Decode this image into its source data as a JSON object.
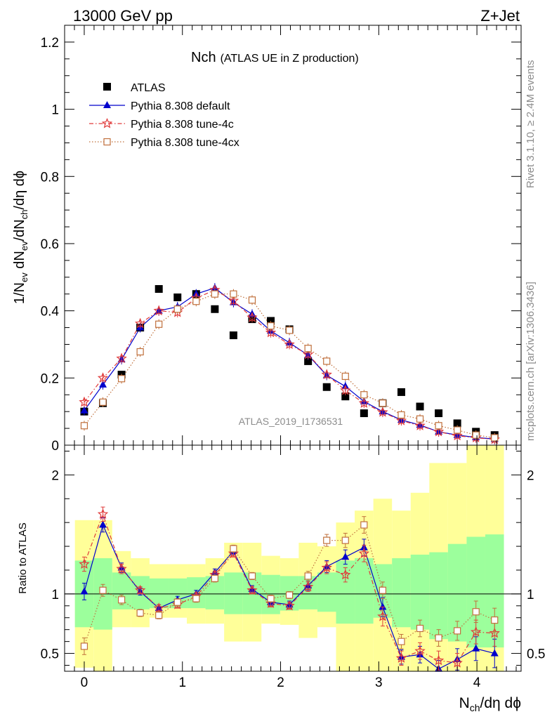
{
  "header": {
    "left": "13000 GeV pp",
    "right": "Z+Jet"
  },
  "side": {
    "rivet": "Rivet 3.1.10, ≥ 2.4M events",
    "mcplots": "mcplots.cern.ch [arXiv:1306.3436]"
  },
  "chart_data": {
    "type": "scatter",
    "title": "Nch",
    "subtitle": "(ATLAS UE in Z production)",
    "watermark": "ATLAS_2019_I1736531",
    "xlabel_main": "N",
    "xlabel_sub": "ch",
    "xlabel_tail": "/dη dϕ",
    "ylabel": {
      "p1": "1/N",
      "s1": "ev",
      "p2": " dN",
      "s2": "ev",
      "p3": "/dN",
      "s3": "ch",
      "p4": "/dη dϕ"
    },
    "ratio_ylabel": "Ratio to ATLAS",
    "xlim": [
      -0.2,
      4.45
    ],
    "ylim": [
      0,
      1.25
    ],
    "ratio_ylim": [
      0.35,
      2.25
    ],
    "x_ticks": [
      "0",
      "1",
      "2",
      "3",
      "4"
    ],
    "y_ticks": [
      "0",
      "0.2",
      "0.4",
      "0.6",
      "0.8",
      "1",
      "1.2"
    ],
    "ratio_ticks": [
      "0.5",
      "1",
      "2"
    ],
    "x": [
      0,
      0.19,
      0.38,
      0.57,
      0.76,
      0.95,
      1.14,
      1.33,
      1.52,
      1.71,
      1.9,
      2.09,
      2.28,
      2.47,
      2.66,
      2.85,
      3.04,
      3.23,
      3.42,
      3.61,
      3.8,
      3.99,
      4.18
    ],
    "series": [
      {
        "name": "ATLAS",
        "values": [
          0.1,
          0.125,
          0.21,
          0.35,
          0.465,
          0.44,
          0.45,
          0.405,
          0.327,
          0.375,
          0.37,
          0.345,
          0.25,
          0.173,
          0.145,
          0.095,
          0.125,
          0.158,
          0.115,
          0.095,
          0.065,
          0.04,
          0.03
        ]
      },
      {
        "name": "Pythia 8.308 default",
        "values": [
          0.103,
          0.18,
          0.255,
          0.35,
          0.4,
          0.412,
          0.45,
          0.468,
          0.425,
          0.39,
          0.34,
          0.305,
          0.268,
          0.208,
          0.175,
          0.13,
          0.1,
          0.075,
          0.06,
          0.04,
          0.03,
          0.023,
          0.018
        ]
      },
      {
        "name": "Pythia 8.308 tune-4c",
        "values": [
          0.128,
          0.2,
          0.258,
          0.362,
          0.4,
          0.395,
          0.438,
          0.462,
          0.43,
          0.38,
          0.335,
          0.3,
          0.27,
          0.21,
          0.163,
          0.125,
          0.098,
          0.073,
          0.058,
          0.04,
          0.028,
          0.022,
          0.017
        ]
      },
      {
        "name": "Pythia 8.308 tune-4cx",
        "values": [
          0.058,
          0.128,
          0.198,
          0.278,
          0.36,
          0.405,
          0.428,
          0.45,
          0.45,
          0.432,
          0.355,
          0.342,
          0.288,
          0.25,
          0.205,
          0.15,
          0.125,
          0.09,
          0.078,
          0.058,
          0.045,
          0.03,
          0.022
        ]
      }
    ],
    "ratio_series": [
      {
        "name": "Pythia 8.308 default",
        "values": [
          1.02,
          1.58,
          1.22,
          1.02,
          0.88,
          0.95,
          1.0,
          1.18,
          1.36,
          1.04,
          0.93,
          0.91,
          1.07,
          1.23,
          1.31,
          1.39,
          0.89,
          0.47,
          0.49,
          0.37,
          0.45,
          0.54,
          0.5
        ],
        "errors": [
          0.07,
          0.06,
          0.04,
          0.03,
          0.03,
          0.03,
          0.03,
          0.03,
          0.03,
          0.03,
          0.03,
          0.03,
          0.04,
          0.05,
          0.06,
          0.07,
          0.08,
          0.06,
          0.07,
          0.07,
          0.09,
          0.1,
          0.12
        ]
      },
      {
        "name": "Pythia 8.308 tune-4c",
        "values": [
          1.25,
          1.67,
          1.21,
          1.03,
          0.88,
          0.91,
          0.98,
          1.16,
          1.34,
          1.03,
          0.92,
          0.9,
          1.06,
          1.22,
          1.16,
          1.34,
          0.81,
          0.46,
          0.52,
          0.44,
          0.42,
          0.68,
          0.67
        ],
        "errors": [
          0.06,
          0.06,
          0.04,
          0.03,
          0.03,
          0.03,
          0.03,
          0.03,
          0.03,
          0.03,
          0.03,
          0.03,
          0.04,
          0.05,
          0.06,
          0.07,
          0.08,
          0.06,
          0.07,
          0.08,
          0.08,
          0.1,
          0.11
        ]
      },
      {
        "name": "Pythia 8.308 tune-4cx",
        "values": [
          0.56,
          1.03,
          0.95,
          0.84,
          0.82,
          0.93,
          0.96,
          1.13,
          1.38,
          1.15,
          0.96,
          0.99,
          1.15,
          1.45,
          1.45,
          1.58,
          1.03,
          0.6,
          0.71,
          0.63,
          0.69,
          0.85,
          0.78
        ],
        "errors": [
          0.07,
          0.05,
          0.04,
          0.03,
          0.03,
          0.03,
          0.03,
          0.03,
          0.03,
          0.03,
          0.03,
          0.03,
          0.04,
          0.05,
          0.06,
          0.07,
          0.07,
          0.06,
          0.07,
          0.07,
          0.08,
          0.09,
          0.1
        ]
      }
    ],
    "band_green": [
      [
        0.72,
        1.28
      ],
      [
        0.7,
        1.3
      ],
      [
        0.87,
        1.18
      ],
      [
        0.87,
        1.15
      ],
      [
        0.88,
        1.13
      ],
      [
        0.88,
        1.13
      ],
      [
        0.88,
        1.14
      ],
      [
        0.87,
        1.15
      ],
      [
        0.83,
        1.18
      ],
      [
        0.83,
        1.18
      ],
      [
        0.83,
        1.16
      ],
      [
        0.86,
        1.15
      ],
      [
        0.87,
        1.15
      ],
      [
        0.85,
        1.18
      ],
      [
        0.75,
        1.28
      ],
      [
        0.75,
        1.3
      ],
      [
        0.8,
        1.25
      ],
      [
        0.72,
        1.3
      ],
      [
        0.7,
        1.33
      ],
      [
        0.62,
        1.35
      ],
      [
        0.6,
        1.42
      ],
      [
        0.55,
        1.48
      ],
      [
        0.55,
        1.5
      ]
    ],
    "band_yellow": [
      [
        0.38,
        1.62
      ],
      [
        0.35,
        1.62
      ],
      [
        0.72,
        1.36
      ],
      [
        0.72,
        1.3
      ],
      [
        0.8,
        1.25
      ],
      [
        0.8,
        1.25
      ],
      [
        0.75,
        1.25
      ],
      [
        0.75,
        1.3
      ],
      [
        0.6,
        1.43
      ],
      [
        0.6,
        1.43
      ],
      [
        0.75,
        1.32
      ],
      [
        0.74,
        1.3
      ],
      [
        0.63,
        1.43
      ],
      [
        0.72,
        1.4
      ],
      [
        0.35,
        1.6
      ],
      [
        0.35,
        1.7
      ],
      [
        0.35,
        1.8
      ],
      [
        0.35,
        1.7
      ],
      [
        0.35,
        1.85
      ],
      [
        0.35,
        2.1
      ],
      [
        0.35,
        2.1
      ],
      [
        0.35,
        2.25
      ],
      [
        0.35,
        2.25
      ]
    ],
    "colors": {
      "ATLAS": "#000000",
      "default": "#0000cc",
      "tune4c": "#e03a3a",
      "tune4cx": "#c0703c",
      "green": "#9cff9c",
      "yellow": "#ffff99"
    }
  }
}
